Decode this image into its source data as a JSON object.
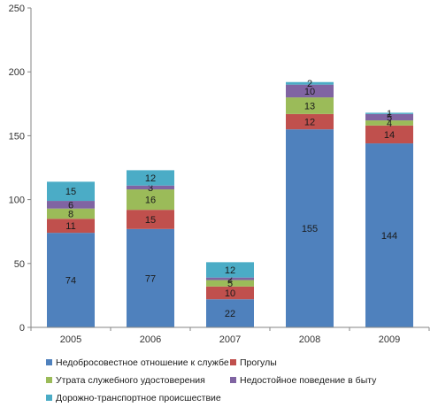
{
  "chart_data": {
    "type": "bar",
    "stacked": true,
    "title": "",
    "xlabel": "",
    "ylabel": "",
    "categories": [
      "2005",
      "2006",
      "2007",
      "2008",
      "2009"
    ],
    "ylim": [
      0,
      250
    ],
    "yticks": [
      "0",
      "50",
      "100",
      "150",
      "200",
      "250"
    ],
    "grid": false,
    "legend_position": "bottom",
    "series": [
      {
        "name": "Недобросовестное отношение к службе",
        "color": "#4f81bd",
        "values": [
          74,
          77,
          22,
          155,
          144
        ],
        "labels": [
          "74",
          "77",
          "22",
          "155",
          "144"
        ]
      },
      {
        "name": "Прогулы",
        "color": "#c0504d",
        "values": [
          11,
          15,
          10,
          12,
          14
        ],
        "labels": [
          "11",
          "15",
          "10",
          "12",
          "14"
        ]
      },
      {
        "name": "Утрата служебного удостоверения",
        "color": "#9bbb59",
        "values": [
          8,
          16,
          5,
          13,
          4
        ],
        "labels": [
          "8",
          "16",
          "5",
          "13",
          "4"
        ]
      },
      {
        "name": "Недостойное поведение в быту",
        "color": "#8064a2",
        "values": [
          6,
          3,
          2,
          10,
          5
        ],
        "labels": [
          "6",
          "3",
          "2",
          "10",
          "5"
        ]
      },
      {
        "name": "Дорожно-транспортное происшествие",
        "color": "#4bacc6",
        "values": [
          15,
          12,
          12,
          2,
          1
        ],
        "labels": [
          "15",
          "12",
          "12",
          "2",
          "1"
        ]
      }
    ]
  }
}
